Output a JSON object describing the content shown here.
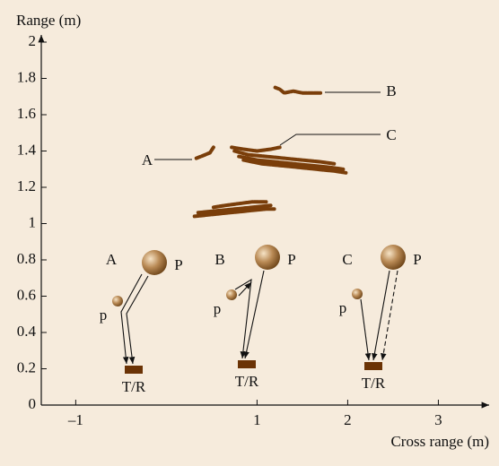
{
  "chart_data": {
    "type": "line",
    "y_label": "Range (m)",
    "x_label": "Cross range (m)",
    "xlim": [
      -1.38,
      3.56
    ],
    "ylim": [
      0,
      2
    ],
    "xticks": [
      {
        "value": -1,
        "label": "–1"
      },
      1,
      2,
      3
    ],
    "yticks": [
      0,
      0.2,
      0.4,
      0.6,
      0.8,
      1,
      1.2,
      1.4,
      1.6,
      1.8,
      2
    ],
    "annotations": [
      "A",
      "B",
      "C"
    ],
    "series": [
      {
        "color": "#7a3e0a",
        "x": [
          1.2,
          1.25,
          1.3,
          1.4,
          1.5,
          1.6,
          1.7
        ],
        "values": [
          1.75,
          1.74,
          1.72,
          1.73,
          1.72,
          1.72,
          1.72
        ]
      },
      {
        "color": "#7a3e0a",
        "x": [
          0.33,
          0.38,
          0.43,
          0.48,
          0.52
        ],
        "values": [
          1.36,
          1.37,
          1.38,
          1.39,
          1.42
        ]
      },
      {
        "color": "#7a3e0a",
        "x": [
          0.72,
          0.85,
          1.0,
          1.15,
          1.25
        ],
        "values": [
          1.42,
          1.41,
          1.4,
          1.41,
          1.42
        ]
      },
      {
        "color": "#7a3e0a",
        "x": [
          0.75,
          0.9,
          1.1,
          1.3,
          1.5,
          1.7,
          1.85
        ],
        "values": [
          1.4,
          1.38,
          1.37,
          1.36,
          1.35,
          1.34,
          1.33
        ]
      },
      {
        "color": "#7a3e0a",
        "x": [
          0.8,
          1.0,
          1.2,
          1.4,
          1.6,
          1.8,
          1.95
        ],
        "values": [
          1.37,
          1.35,
          1.34,
          1.33,
          1.32,
          1.31,
          1.3
        ]
      },
      {
        "color": "#7a3e0a",
        "x": [
          0.85,
          1.05,
          1.25,
          1.45,
          1.65,
          1.85,
          1.98
        ],
        "values": [
          1.35,
          1.33,
          1.32,
          1.31,
          1.3,
          1.29,
          1.28
        ]
      },
      {
        "color": "#7a3e0a",
        "x": [
          0.52,
          0.65,
          0.8,
          0.95,
          1.1
        ],
        "values": [
          1.09,
          1.1,
          1.11,
          1.12,
          1.12
        ]
      },
      {
        "color": "#7a3e0a",
        "x": [
          0.35,
          0.55,
          0.75,
          0.95,
          1.15
        ],
        "values": [
          1.06,
          1.07,
          1.08,
          1.09,
          1.1
        ]
      },
      {
        "color": "#7a3e0a",
        "x": [
          0.31,
          0.5,
          0.7,
          0.9,
          1.1,
          1.19
        ],
        "values": [
          1.04,
          1.05,
          1.06,
          1.07,
          1.08,
          1.08
        ]
      }
    ]
  },
  "insets": [
    {
      "label": "A",
      "large": "P",
      "small": "p",
      "transceiver": "T/R"
    },
    {
      "label": "B",
      "large": "P",
      "small": "p",
      "transceiver": "T/R"
    },
    {
      "label": "C",
      "large": "P",
      "small": "p",
      "transceiver": "T/R"
    }
  ]
}
